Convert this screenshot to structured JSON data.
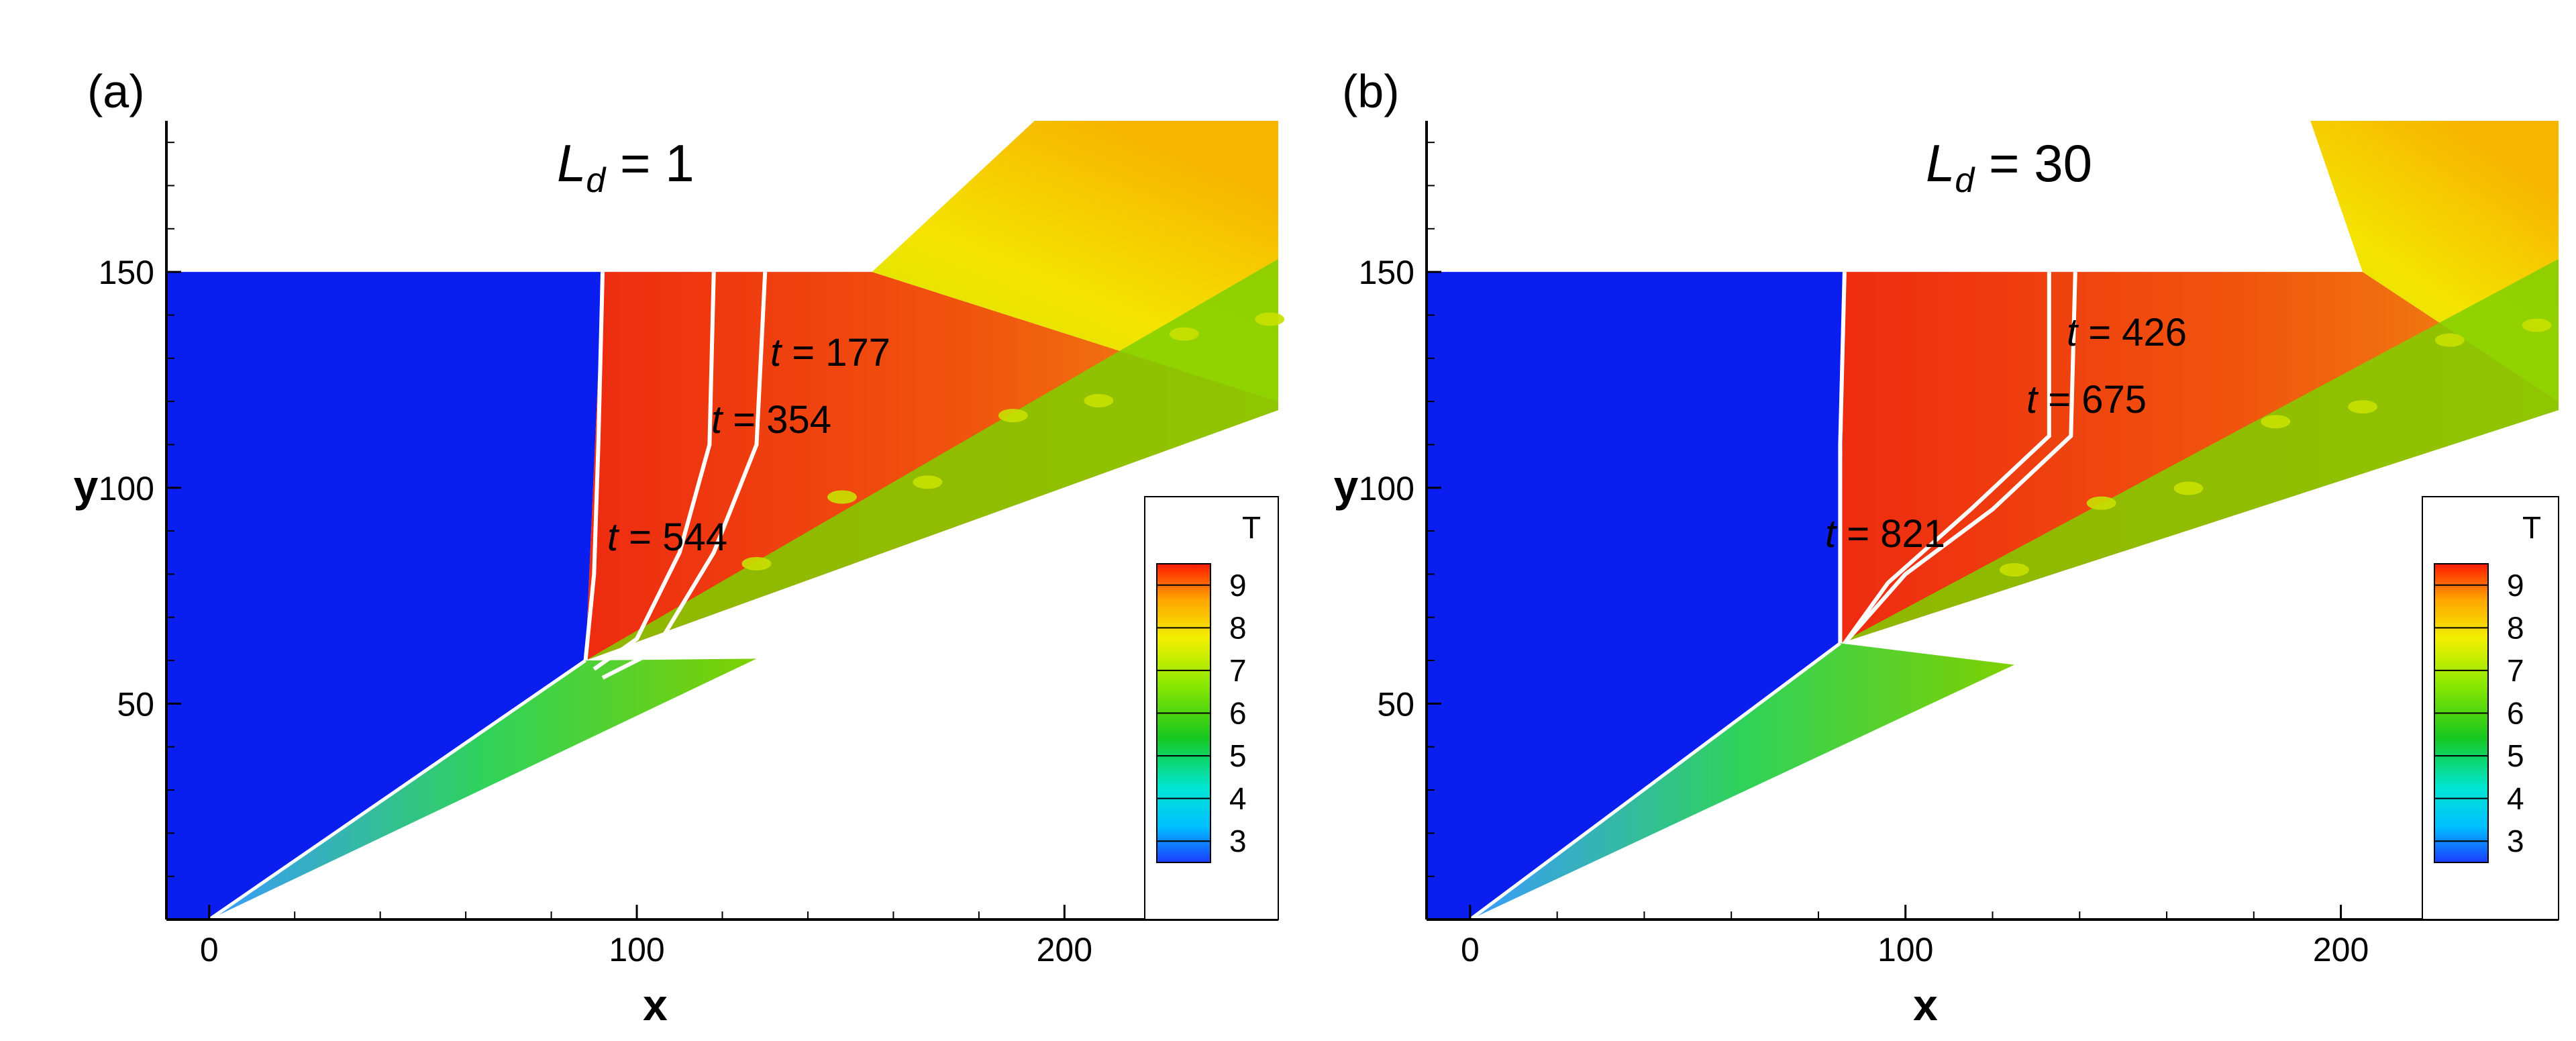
{
  "chart_data": [
    {
      "type": "heatmap",
      "panel_label": "(a)",
      "parameter": {
        "symbol": "L",
        "subscript": "d",
        "equals": " = 1"
      },
      "xlabel": "x",
      "ylabel": "y",
      "xlim": [
        -10,
        250
      ],
      "ylim": [
        0,
        185
      ],
      "xticks": [
        "0",
        "100",
        "200"
      ],
      "yticks": [
        "50",
        "100",
        "150"
      ],
      "colorbar": {
        "title": "T",
        "range": [
          2.5,
          9.5
        ],
        "ticks": [
          "9",
          "8",
          "7",
          "6",
          "5",
          "4",
          "3"
        ]
      },
      "front_lines": [
        {
          "label": "177",
          "points": [
            [
              130,
              150
            ],
            [
              128,
              110
            ],
            [
              118,
              85
            ],
            [
              104,
              62
            ],
            [
              92,
              56
            ]
          ]
        },
        {
          "label": "354",
          "points": [
            [
              118,
              150
            ],
            [
              117,
              110
            ],
            [
              110,
              85
            ],
            [
              100,
              65
            ],
            [
              90,
              58
            ]
          ]
        },
        {
          "label": "544",
          "points": [
            [
              92,
              150
            ],
            [
              91,
              110
            ],
            [
              90,
              80
            ],
            [
              88,
              60
            ]
          ]
        }
      ],
      "annotations": [
        {
          "prefix": "t",
          "value": " = 177"
        },
        {
          "prefix": "t",
          "value": " = 354"
        },
        {
          "prefix": "t",
          "value": " = 544"
        }
      ],
      "colors": {
        "cold": "#0a1ef0",
        "hot": "#ee2b10",
        "mid": "#7fd000",
        "warm": "#f08a10"
      }
    },
    {
      "type": "heatmap",
      "panel_label": "(b)",
      "parameter": {
        "symbol": "L",
        "subscript": "d",
        "equals": " = 30"
      },
      "xlabel": "x",
      "ylabel": "y",
      "xlim": [
        -10,
        250
      ],
      "ylim": [
        0,
        185
      ],
      "xticks": [
        "0",
        "100",
        "200"
      ],
      "yticks": [
        "50",
        "100",
        "150"
      ],
      "colorbar": {
        "title": "T",
        "range": [
          2.5,
          9.5
        ],
        "ticks": [
          "9",
          "8",
          "7",
          "6",
          "5",
          "4",
          "3"
        ]
      },
      "front_lines": [
        {
          "label": "426",
          "points": [
            [
              139,
              150
            ],
            [
              138,
              112
            ],
            [
              120,
              95
            ],
            [
              100,
              80
            ],
            [
              86,
              64
            ]
          ]
        },
        {
          "label": "675",
          "points": [
            [
              133,
              150
            ],
            [
              133,
              112
            ],
            [
              115,
              95
            ],
            [
              96,
              78
            ],
            [
              86,
              64
            ]
          ]
        },
        {
          "label": "821",
          "points": [
            [
              86,
              150
            ],
            [
              85,
              110
            ],
            [
              85,
              64
            ]
          ]
        }
      ],
      "annotations": [
        {
          "prefix": "t",
          "value": " = 426"
        },
        {
          "prefix": "t",
          "value": " = 675"
        },
        {
          "prefix": "t",
          "value": " = 821"
        }
      ],
      "colors": {
        "cold": "#0a1ef0",
        "hot": "#ee2b10",
        "mid": "#7fd000",
        "warm": "#f08a10"
      }
    }
  ]
}
